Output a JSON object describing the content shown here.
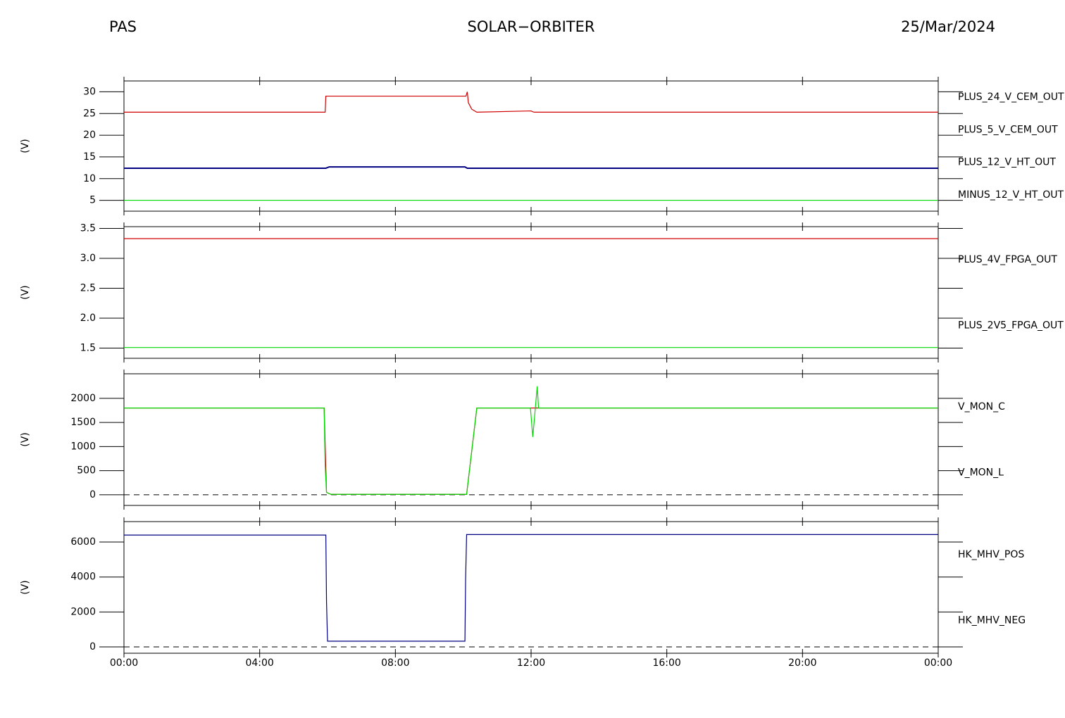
{
  "header": {
    "left": "PAS",
    "center": "SOLAR−ORBITER",
    "right": "25/Mar/2024"
  },
  "chart_data": [
    {
      "type": "line",
      "ylabel": "(V)",
      "xlim": [
        0,
        24
      ],
      "xticks": [
        0,
        4,
        8,
        12,
        16,
        20,
        24
      ],
      "ylim": [
        2.5,
        32.5
      ],
      "yticks": [
        5,
        10,
        15,
        20,
        25,
        30
      ],
      "series": [
        {
          "name": "PLUS_24_V_CEM_OUT",
          "color": "#d00000",
          "x": [
            0,
            5.93,
            5.95,
            10.08,
            10.12,
            10.15,
            10.25,
            10.4,
            12.0,
            12.05,
            12.1,
            24
          ],
          "values": [
            25.3,
            25.3,
            29,
            29,
            30,
            27.5,
            26,
            25.3,
            25.6,
            25.4,
            25.3,
            25.3
          ]
        },
        {
          "name": "PLUS_5_V_CEM_OUT",
          "color": "#00d800",
          "x": [
            0,
            24
          ],
          "values": [
            5,
            5
          ]
        },
        {
          "name": "PLUS_12_V_HT_OUT",
          "color": "#000080",
          "x": [
            0,
            5.95,
            6.05,
            10.05,
            10.12,
            24
          ],
          "values": [
            12.4,
            12.4,
            12.7,
            12.7,
            12.4,
            12.4
          ]
        },
        {
          "name": "MINUS_12_V_HT_OUT",
          "color": "#000000",
          "x": [
            0,
            24
          ],
          "values": [
            null,
            null
          ]
        }
      ]
    },
    {
      "type": "line",
      "ylabel": "(V)",
      "xlim": [
        0,
        24
      ],
      "xticks": [
        0,
        4,
        8,
        12,
        16,
        20,
        24
      ],
      "ylim": [
        1.33,
        3.53
      ],
      "yticks": [
        1.5,
        {
          "value": 2,
          "label": "2.0"
        },
        2.5,
        {
          "value": 3,
          "label": "3.0"
        },
        3.5
      ],
      "series": [
        {
          "name": "PLUS_4V_FPGA_OUT",
          "color": "#d00000",
          "x": [
            0,
            24
          ],
          "values": [
            3.33,
            3.33
          ]
        },
        {
          "name": "PLUS_2V5_FPGA_OUT",
          "color": "#00d800",
          "x": [
            0,
            24
          ],
          "values": [
            1.51,
            1.51
          ]
        }
      ]
    },
    {
      "type": "line",
      "ylabel": "(V)",
      "xlim": [
        0,
        24
      ],
      "xticks": [
        0,
        4,
        8,
        12,
        16,
        20,
        24
      ],
      "ylim": [
        -220,
        2510
      ],
      "yticks": [
        0,
        500,
        1000,
        1500,
        2000
      ],
      "reference_line": 0,
      "series": [
        {
          "name": "V_MON_C",
          "color": "#d00000",
          "x": [
            0,
            5.9,
            5.97,
            6.1,
            10.1,
            10.4,
            24
          ],
          "values": [
            1800,
            1800,
            50,
            10,
            10,
            1800,
            1800
          ]
        },
        {
          "name": "V_MON_L",
          "color": "#00d800",
          "x": [
            0,
            5.9,
            5.93,
            5.97,
            6.1,
            10.1,
            10.4,
            11.98,
            12.05,
            12.15,
            12.18,
            12.22,
            24
          ],
          "values": [
            1800,
            1800,
            600,
            50,
            10,
            10,
            1800,
            1800,
            1200,
            2000,
            2250,
            1800,
            1800
          ]
        }
      ]
    },
    {
      "type": "line",
      "ylabel": "(V)",
      "xlim": [
        0,
        24
      ],
      "xticks": [
        {
          "value": 0,
          "label": "00:00"
        },
        {
          "value": 4,
          "label": "04:00"
        },
        {
          "value": 8,
          "label": "08:00"
        },
        {
          "value": 12,
          "label": "12:00"
        },
        {
          "value": 16,
          "label": "16:00"
        },
        {
          "value": 20,
          "label": "20:00"
        },
        {
          "value": 24,
          "label": "00:00"
        }
      ],
      "ylim": [
        -360,
        7170
      ],
      "yticks": [
        0,
        2000,
        4000,
        6000
      ],
      "reference_line": 0,
      "series": [
        {
          "name": "HK_MHV_POS",
          "color": "#000000",
          "x": [
            0,
            24
          ],
          "values": [
            null,
            null
          ]
        },
        {
          "name": "HK_MHV_NEG",
          "color": "#000080",
          "x": [
            0,
            5.95,
            5.97,
            6.0,
            10.05,
            10.07,
            10.1,
            24
          ],
          "values": [
            6400,
            6400,
            2600,
            330,
            330,
            3900,
            6430,
            6430
          ]
        }
      ]
    }
  ]
}
